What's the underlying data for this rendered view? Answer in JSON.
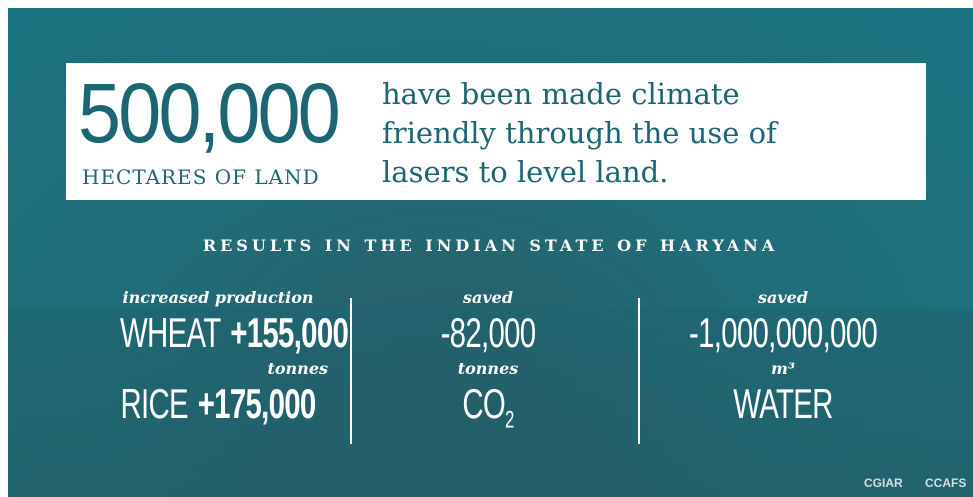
{
  "headline": {
    "number": "500,000",
    "unit": "HECTARES OF LAND",
    "description": [
      "have been made climate",
      "friendly through the use of",
      "lasers to level land."
    ]
  },
  "results": {
    "title": "RESULTS IN THE INDIAN STATE OF HARYANA",
    "columns": [
      {
        "caption": "increased production",
        "rows": [
          {
            "label": "WHEAT",
            "value": "+155,000"
          }
        ],
        "unit": "tonnes",
        "rows2": [
          {
            "label": "RICE",
            "value": "+175,000"
          }
        ]
      },
      {
        "caption": "saved",
        "value": "-82,000",
        "unit": "tonnes",
        "subject": {
          "text": "CO",
          "subscript": "2"
        }
      },
      {
        "caption": "saved",
        "value": "-1,000,000,000",
        "unit": "m³",
        "subject": {
          "text": "WATER"
        }
      }
    ]
  },
  "logos": [
    "CGIAR",
    "CCAFS"
  ]
}
